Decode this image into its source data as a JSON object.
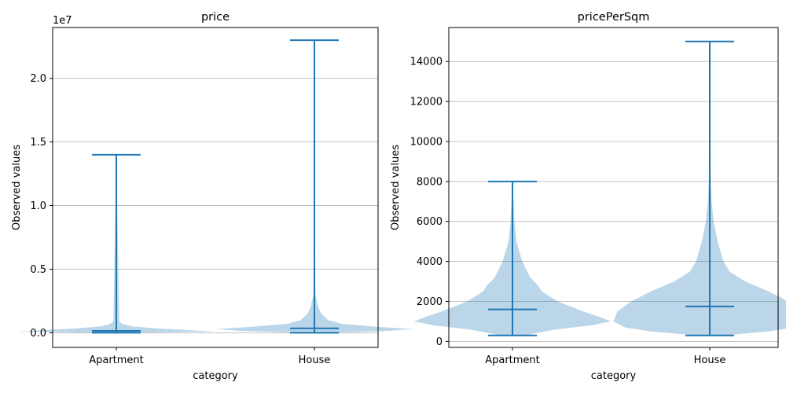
{
  "chart_data": [
    {
      "type": "violin",
      "title": "price",
      "xlabel": "category",
      "ylabel": "Observed values",
      "offset_text": "1e7",
      "categories": [
        "Apartment",
        "House"
      ],
      "ylim": [
        -1150000,
        24000000
      ],
      "yticks": [
        0,
        5000000,
        10000000,
        15000000,
        20000000
      ],
      "ytick_labels": [
        "0.0",
        "0.5",
        "1.0",
        "1.5",
        "2.0"
      ],
      "grid": "y",
      "series": [
        {
          "category": "Apartment",
          "min": 0,
          "max": 14000000,
          "median": 150000,
          "density": [
            [
              0,
              0.06
            ],
            [
              100000,
              0.5
            ],
            [
              200000,
              0.38
            ],
            [
              350000,
              0.2
            ],
            [
              500000,
              0.08
            ],
            [
              700000,
              0.03
            ],
            [
              900000,
              0.015
            ],
            [
              14000000,
              0
            ]
          ]
        },
        {
          "category": "House",
          "min": 0,
          "max": 23000000,
          "median": 350000,
          "density": [
            [
              0,
              0.06
            ],
            [
              150000,
              0.38
            ],
            [
              300000,
              0.5
            ],
            [
              450000,
              0.34
            ],
            [
              700000,
              0.14
            ],
            [
              1000000,
              0.07
            ],
            [
              1500000,
              0.035
            ],
            [
              2000000,
              0.02
            ],
            [
              3000000,
              0.005
            ],
            [
              23000000,
              0
            ]
          ]
        }
      ]
    },
    {
      "type": "violin",
      "title": "pricePerSqm",
      "xlabel": "category",
      "ylabel": "Observed values",
      "categories": [
        "Apartment",
        "House"
      ],
      "ylim": [
        -300,
        15700
      ],
      "yticks": [
        0,
        2000,
        4000,
        6000,
        8000,
        10000,
        12000,
        14000
      ],
      "ytick_labels": [
        "0",
        "2000",
        "4000",
        "6000",
        "8000",
        "10000",
        "12000",
        "14000"
      ],
      "grid": "y",
      "series": [
        {
          "category": "Apartment",
          "min": 300,
          "max": 8000,
          "median": 1600,
          "density": [
            [
              300,
              0.06
            ],
            [
              600,
              0.22
            ],
            [
              800,
              0.4
            ],
            [
              1000,
              0.5
            ],
            [
              1200,
              0.45
            ],
            [
              1500,
              0.36
            ],
            [
              2000,
              0.23
            ],
            [
              2500,
              0.15
            ],
            [
              2800,
              0.13
            ],
            [
              3200,
              0.09
            ],
            [
              4000,
              0.05
            ],
            [
              5000,
              0.02
            ],
            [
              6000,
              0.01
            ],
            [
              8000,
              0
            ]
          ]
        },
        {
          "category": "House",
          "min": 300,
          "max": 15000,
          "median": 1750,
          "density": [
            [
              300,
              0.07
            ],
            [
              500,
              0.3
            ],
            [
              700,
              0.43
            ],
            [
              1000,
              0.49
            ],
            [
              1500,
              0.47
            ],
            [
              2000,
              0.4
            ],
            [
              2500,
              0.3
            ],
            [
              3000,
              0.18
            ],
            [
              3500,
              0.1
            ],
            [
              4000,
              0.07
            ],
            [
              5000,
              0.04
            ],
            [
              6000,
              0.02
            ],
            [
              7000,
              0.01
            ],
            [
              8000,
              0.005
            ],
            [
              15000,
              0
            ]
          ]
        }
      ]
    }
  ]
}
